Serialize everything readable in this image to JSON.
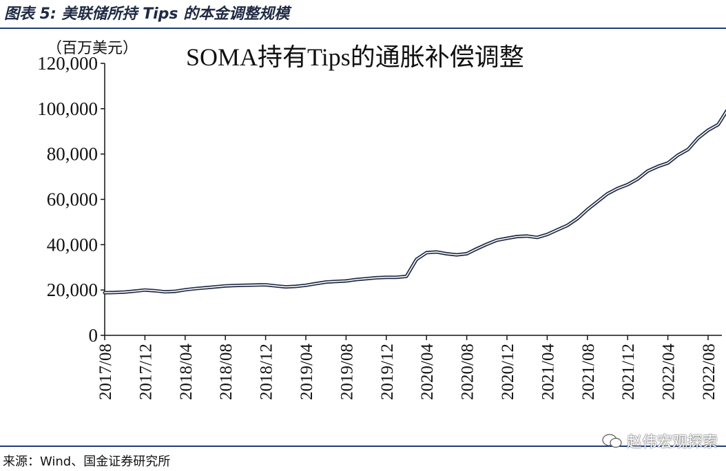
{
  "figure_title": "图表 5:  美联储所持 Tips 的本金调整规模",
  "source": "来源：Wind、国金证券研究所",
  "watermark": "赵伟宏观探索",
  "chart_data": {
    "type": "line",
    "title": "SOMA持有Tips的通胀补偿调整",
    "unit_label": "（百万美元）",
    "ylim": [
      0,
      120000
    ],
    "y_ticks": [
      0,
      20000,
      40000,
      60000,
      80000,
      100000,
      120000
    ],
    "y_tick_labels": [
      "0",
      "20,000",
      "40,000",
      "60,000",
      "80,000",
      "100,000",
      "120,000"
    ],
    "x_tick_labels": [
      "2017/08",
      "2017/12",
      "2018/04",
      "2018/08",
      "2018/12",
      "2019/04",
      "2019/08",
      "2019/12",
      "2020/04",
      "2020/08",
      "2020/12",
      "2021/04",
      "2021/08",
      "2021/12",
      "2022/04",
      "2022/08"
    ],
    "grid": false,
    "series": [
      {
        "color": "#1f2a44",
        "x": [
          "2017/08",
          "2017/09",
          "2017/10",
          "2017/11",
          "2017/12",
          "2018/01",
          "2018/02",
          "2018/03",
          "2018/04",
          "2018/05",
          "2018/06",
          "2018/07",
          "2018/08",
          "2018/09",
          "2018/10",
          "2018/11",
          "2018/12",
          "2019/01",
          "2019/02",
          "2019/03",
          "2019/04",
          "2019/05",
          "2019/06",
          "2019/07",
          "2019/08",
          "2019/09",
          "2019/10",
          "2019/11",
          "2019/12",
          "2020/01",
          "2020/02",
          "2020/03",
          "2020/04",
          "2020/05",
          "2020/06",
          "2020/07",
          "2020/08",
          "2020/09",
          "2020/10",
          "2020/11",
          "2020/12",
          "2021/01",
          "2021/02",
          "2021/03",
          "2021/04",
          "2021/05",
          "2021/06",
          "2021/07",
          "2021/08",
          "2021/09",
          "2021/10",
          "2021/11",
          "2021/12",
          "2022/01",
          "2022/02",
          "2022/03",
          "2022/04",
          "2022/05",
          "2022/06",
          "2022/07",
          "2022/08",
          "2022/09",
          "2022/10"
        ],
        "values": [
          18800,
          18900,
          19100,
          19500,
          20000,
          19700,
          19200,
          19400,
          20100,
          20600,
          21000,
          21400,
          21800,
          22000,
          22100,
          22200,
          22300,
          21800,
          21400,
          21600,
          22100,
          22800,
          23500,
          23800,
          24000,
          24600,
          25000,
          25400,
          25600,
          25600,
          26000,
          33500,
          36500,
          36800,
          36000,
          35500,
          36000,
          38200,
          40200,
          42000,
          42800,
          43600,
          43800,
          43200,
          44500,
          46500,
          48500,
          51500,
          55500,
          59000,
          62500,
          64800,
          66500,
          69000,
          72500,
          74500,
          76000,
          79500,
          82000,
          87000,
          90500,
          93000,
          100000
        ]
      }
    ]
  }
}
